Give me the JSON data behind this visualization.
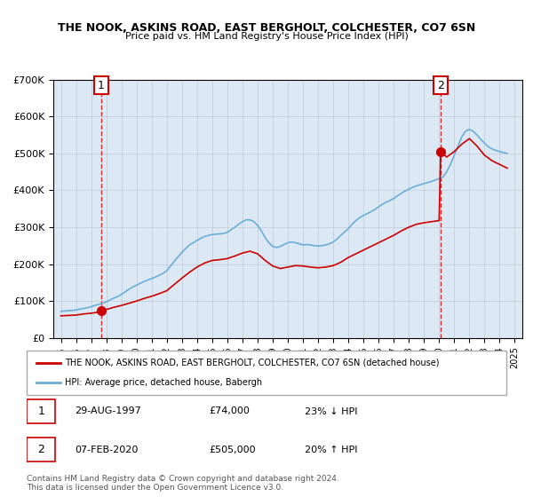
{
  "title": "THE NOOK, ASKINS ROAD, EAST BERGHOLT, COLCHESTER, CO7 6SN",
  "subtitle": "Price paid vs. HM Land Registry's House Price Index (HPI)",
  "background_color": "#dce9f5",
  "plot_bg_color": "#dce9f5",
  "hpi_color": "#6baed6",
  "price_color": "#cc0000",
  "ylim": [
    0,
    700000
  ],
  "yticks": [
    0,
    100000,
    200000,
    300000,
    400000,
    500000,
    600000,
    700000
  ],
  "ytick_labels": [
    "£0",
    "£100K",
    "£200K",
    "£300K",
    "£400K",
    "£500K",
    "£600K",
    "£700K"
  ],
  "xlim_start": 1994.5,
  "xlim_end": 2025.5,
  "xtick_years": [
    1995,
    1996,
    1997,
    1998,
    1999,
    2000,
    2001,
    2002,
    2003,
    2004,
    2005,
    2006,
    2007,
    2008,
    2009,
    2010,
    2011,
    2012,
    2013,
    2014,
    2015,
    2016,
    2017,
    2018,
    2019,
    2020,
    2021,
    2022,
    2023,
    2024,
    2025
  ],
  "sale1_x": 1997.66,
  "sale1_y": 74000,
  "sale2_x": 2020.1,
  "sale2_y": 505000,
  "legend_price_label": "THE NOOK, ASKINS ROAD, EAST BERGHOLT, COLCHESTER, CO7 6SN (detached house)",
  "legend_hpi_label": "HPI: Average price, detached house, Babergh",
  "annotation1_label": "1",
  "annotation2_label": "2",
  "table_row1": "1    29-AUG-1997         £74,000        23% ↓ HPI",
  "table_row2": "2    07-FEB-2020         £505,000      20% ↑ HPI",
  "footer": "Contains HM Land Registry data © Crown copyright and database right 2024.\nThis data is licensed under the Open Government Licence v3.0.",
  "hpi_data_x": [
    1995.0,
    1995.25,
    1995.5,
    1995.75,
    1996.0,
    1996.25,
    1996.5,
    1996.75,
    1997.0,
    1997.25,
    1997.5,
    1997.75,
    1998.0,
    1998.25,
    1998.5,
    1998.75,
    1999.0,
    1999.25,
    1999.5,
    1999.75,
    2000.0,
    2000.25,
    2000.5,
    2000.75,
    2001.0,
    2001.25,
    2001.5,
    2001.75,
    2002.0,
    2002.25,
    2002.5,
    2002.75,
    2003.0,
    2003.25,
    2003.5,
    2003.75,
    2004.0,
    2004.25,
    2004.5,
    2004.75,
    2005.0,
    2005.25,
    2005.5,
    2005.75,
    2006.0,
    2006.25,
    2006.5,
    2006.75,
    2007.0,
    2007.25,
    2007.5,
    2007.75,
    2008.0,
    2008.25,
    2008.5,
    2008.75,
    2009.0,
    2009.25,
    2009.5,
    2009.75,
    2010.0,
    2010.25,
    2010.5,
    2010.75,
    2011.0,
    2011.25,
    2011.5,
    2011.75,
    2012.0,
    2012.25,
    2012.5,
    2012.75,
    2013.0,
    2013.25,
    2013.5,
    2013.75,
    2014.0,
    2014.25,
    2014.5,
    2014.75,
    2015.0,
    2015.25,
    2015.5,
    2015.75,
    2016.0,
    2016.25,
    2016.5,
    2016.75,
    2017.0,
    2017.25,
    2017.5,
    2017.75,
    2018.0,
    2018.25,
    2018.5,
    2018.75,
    2019.0,
    2019.25,
    2019.5,
    2019.75,
    2020.0,
    2020.25,
    2020.5,
    2020.75,
    2021.0,
    2021.25,
    2021.5,
    2021.75,
    2022.0,
    2022.25,
    2022.5,
    2022.75,
    2023.0,
    2023.25,
    2023.5,
    2023.75,
    2024.0,
    2024.25,
    2024.5
  ],
  "hpi_data_y": [
    72000,
    73000,
    74000,
    74500,
    76000,
    78000,
    80000,
    82000,
    85000,
    88000,
    91000,
    94000,
    98000,
    103000,
    108000,
    112000,
    118000,
    125000,
    132000,
    138000,
    143000,
    148000,
    153000,
    157000,
    161000,
    165000,
    170000,
    175000,
    182000,
    195000,
    208000,
    220000,
    232000,
    242000,
    252000,
    258000,
    264000,
    270000,
    275000,
    278000,
    280000,
    281000,
    282000,
    283000,
    286000,
    293000,
    300000,
    308000,
    315000,
    320000,
    320000,
    315000,
    305000,
    290000,
    272000,
    258000,
    248000,
    245000,
    248000,
    253000,
    258000,
    260000,
    258000,
    255000,
    252000,
    253000,
    252000,
    250000,
    249000,
    250000,
    252000,
    255000,
    260000,
    268000,
    278000,
    287000,
    296000,
    308000,
    318000,
    326000,
    332000,
    337000,
    342000,
    348000,
    355000,
    362000,
    368000,
    372000,
    378000,
    385000,
    392000,
    398000,
    403000,
    408000,
    412000,
    415000,
    418000,
    421000,
    424000,
    428000,
    432000,
    436000,
    450000,
    470000,
    495000,
    520000,
    545000,
    560000,
    565000,
    560000,
    550000,
    538000,
    528000,
    518000,
    512000,
    508000,
    505000,
    502000,
    500000
  ],
  "price_hpi_data_x": [
    1995.0,
    1995.5,
    1996.0,
    1996.5,
    1997.0,
    1997.5,
    1997.66,
    1998.0,
    1998.5,
    1999.0,
    1999.5,
    2000.0,
    2000.5,
    2001.0,
    2001.5,
    2002.0,
    2002.5,
    2003.0,
    2003.5,
    2004.0,
    2004.5,
    2005.0,
    2005.5,
    2006.0,
    2006.5,
    2007.0,
    2007.5,
    2008.0,
    2008.5,
    2009.0,
    2009.5,
    2010.0,
    2010.5,
    2011.0,
    2011.5,
    2012.0,
    2012.5,
    2013.0,
    2013.5,
    2014.0,
    2014.5,
    2015.0,
    2015.5,
    2016.0,
    2016.5,
    2017.0,
    2017.5,
    2018.0,
    2018.5,
    2019.0,
    2019.5,
    2020.0,
    2020.1,
    2020.5,
    2021.0,
    2021.5,
    2022.0,
    2022.5,
    2023.0,
    2023.5,
    2024.0,
    2024.5
  ],
  "price_hpi_data_y": [
    60000,
    61000,
    62000,
    65000,
    67000,
    70000,
    74000,
    77000,
    83000,
    88000,
    94000,
    100000,
    107000,
    113000,
    120000,
    128000,
    145000,
    162000,
    178000,
    192000,
    203000,
    210000,
    212000,
    215000,
    222000,
    230000,
    235000,
    228000,
    210000,
    195000,
    188000,
    192000,
    196000,
    195000,
    192000,
    190000,
    192000,
    196000,
    205000,
    218000,
    228000,
    238000,
    248000,
    258000,
    268000,
    278000,
    290000,
    300000,
    308000,
    312000,
    315000,
    318000,
    505000,
    490000,
    505000,
    525000,
    540000,
    520000,
    495000,
    480000,
    470000,
    460000
  ]
}
